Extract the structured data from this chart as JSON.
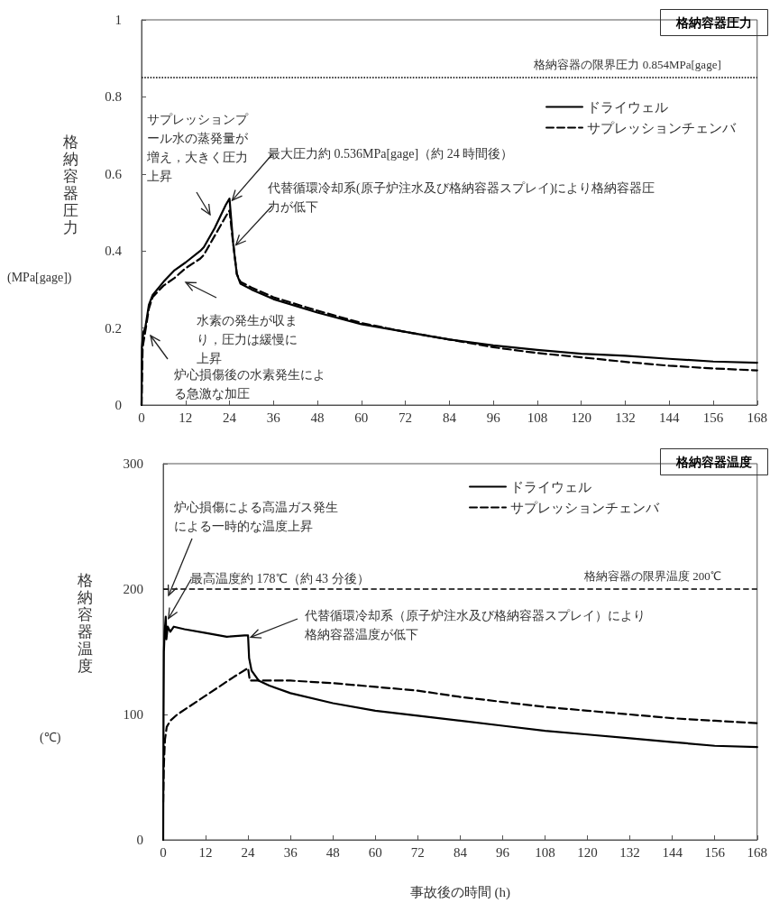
{
  "chart_data": [
    {
      "type": "line",
      "title": "格納容器圧力",
      "ylabel": "格納容器圧力(MPa[gage])",
      "xlim": [
        0,
        168
      ],
      "xticks": [
        0,
        12,
        24,
        36,
        48,
        60,
        72,
        84,
        96,
        108,
        120,
        132,
        144,
        156,
        168
      ],
      "ylim": [
        0,
        1
      ],
      "yticks": [
        0,
        0.2,
        0.4,
        0.6,
        0.8,
        1
      ],
      "legend": "top right",
      "marker": "none",
      "series": [
        {
          "name": "ドライウェル",
          "color": "#000000",
          "line_style": "solid",
          "x": [
            0,
            0.1,
            0.5,
            1,
            2,
            3,
            6,
            9,
            12,
            16,
            17,
            20,
            23,
            24,
            25,
            26,
            27,
            30,
            36,
            48,
            60,
            72,
            84,
            96,
            108,
            120,
            132,
            144,
            156,
            168
          ],
          "values": [
            0,
            0.15,
            0.19,
            0.2,
            0.26,
            0.285,
            0.32,
            0.35,
            0.37,
            0.4,
            0.41,
            0.46,
            0.52,
            0.536,
            0.42,
            0.34,
            0.315,
            0.3,
            0.275,
            0.24,
            0.21,
            0.19,
            0.17,
            0.155,
            0.143,
            0.133,
            0.128,
            0.12,
            0.113,
            0.11
          ]
        },
        {
          "name": "サプレッションチェンバ",
          "color": "#000000",
          "line_style": "dashed",
          "x": [
            0,
            0.3,
            1,
            2,
            3,
            6,
            9,
            12,
            16,
            17,
            20,
            23,
            24,
            25,
            26,
            27,
            30,
            36,
            48,
            60,
            72,
            84,
            96,
            108,
            120,
            132,
            144,
            156,
            168
          ],
          "values": [
            0,
            0.15,
            0.19,
            0.25,
            0.28,
            0.31,
            0.33,
            0.355,
            0.38,
            0.39,
            0.44,
            0.49,
            0.505,
            0.42,
            0.34,
            0.32,
            0.305,
            0.28,
            0.245,
            0.213,
            0.19,
            0.17,
            0.15,
            0.135,
            0.124,
            0.112,
            0.102,
            0.095,
            0.09
          ]
        }
      ],
      "ref_lines": [
        {
          "axis": "y",
          "value": 0.854,
          "label": "格納容器の限界圧力 0.854MPa[gage]",
          "line_style": "dotted",
          "color": "#000000"
        }
      ],
      "annotations": [
        "サプレッションプール水の蒸発量が増え，大きく圧力上昇",
        {
          "text": "最大圧力約 0.536MPa[gage]（約 24 時間後）",
          "x": 24,
          "y": 0.536
        },
        {
          "text": "代替循環冷却系(原子炉注水及び格納容器スプレイ)により格納容器圧力が低下",
          "x": 25,
          "y": 0.42
        },
        "水素の発生が収まり，圧力は緩慢に上昇",
        "炉心損傷後の水素発生による急激な加圧"
      ]
    },
    {
      "type": "line",
      "title": "格納容器温度",
      "xlabel": "事故後の時間 (h)",
      "ylabel": "格納容器温度(℃)",
      "xlim": [
        0,
        168
      ],
      "xticks": [
        0,
        12,
        24,
        36,
        48,
        60,
        72,
        84,
        96,
        108,
        120,
        132,
        144,
        156,
        168
      ],
      "ylim": [
        0,
        300
      ],
      "yticks": [
        0,
        100,
        200,
        300
      ],
      "legend": "top right",
      "marker": "none",
      "series": [
        {
          "name": "ドライウェル",
          "color": "#000000",
          "line_style": "solid",
          "x": [
            0,
            0.1,
            0.2,
            0.4,
            0.72,
            0.9,
            1.3,
            2,
            3,
            6,
            12,
            18,
            23,
            24,
            24.3,
            25,
            27,
            30,
            36,
            48,
            60,
            72,
            84,
            96,
            108,
            120,
            132,
            144,
            156,
            168
          ],
          "values": [
            0,
            100,
            150,
            165,
            178,
            160,
            170,
            166,
            170,
            168,
            165,
            162,
            163,
            163,
            145,
            135,
            127,
            123,
            117,
            109,
            103,
            99,
            95,
            91,
            87,
            84,
            81,
            78,
            75,
            74
          ]
        },
        {
          "name": "サプレッションチェンバ",
          "color": "#000000",
          "line_style": "dashed",
          "x": [
            0,
            0.2,
            0.5,
            1,
            2,
            4,
            12,
            20,
            24,
            24.5,
            30,
            36,
            48,
            60,
            72,
            84,
            96,
            108,
            120,
            132,
            144,
            156,
            168
          ],
          "values": [
            30,
            60,
            80,
            90,
            95,
            100,
            115,
            130,
            137,
            127,
            127,
            127,
            125,
            122,
            119,
            114,
            110,
            106,
            103,
            100,
            97,
            95,
            93
          ]
        }
      ],
      "ref_lines": [
        {
          "axis": "y",
          "value": 200,
          "label": "格納容器の限界温度 200℃",
          "line_style": "dashed",
          "color": "#000000"
        }
      ],
      "annotations": [
        "炉心損傷による高温ガス発生による一時的な温度上昇",
        {
          "text": "最高温度約 178℃（約 43 分後）",
          "x": 0.72,
          "y": 178
        },
        {
          "text": "代替循環冷却系（原子炉注水及び格納容器スプレイ）により格納容器温度が低下",
          "x": 24,
          "y": 163
        }
      ]
    }
  ]
}
